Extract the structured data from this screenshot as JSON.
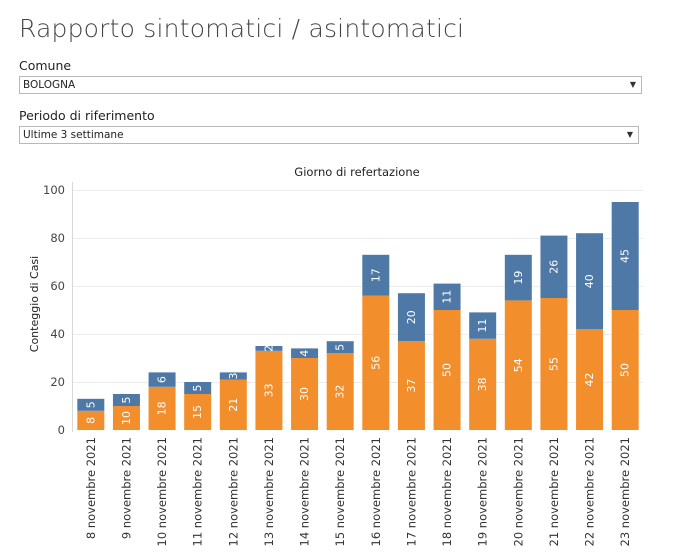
{
  "page": {
    "title": "Rapporto sintomatici / asintomatici",
    "filters": [
      {
        "label": "Comune",
        "value": "BOLOGNA"
      },
      {
        "label": "Periodo di riferimento",
        "value": "Ultime 3 settimane"
      }
    ]
  },
  "colors": {
    "sintomatici": "#F28E2B",
    "asintomatici": "#4E79A7"
  },
  "chart_data": {
    "type": "bar",
    "stacked": true,
    "title": "Giorno di refertazione",
    "xlabel": "",
    "ylabel": "Conteggio di Casi",
    "ylim": [
      0,
      100
    ],
    "yticks": [
      0,
      20,
      40,
      60,
      80,
      100
    ],
    "grid": true,
    "categories": [
      "8 novembre 2021",
      "9 novembre 2021",
      "10 novembre 2021",
      "11 novembre 2021",
      "12 novembre 2021",
      "13 novembre 2021",
      "14 novembre 2021",
      "15 novembre 2021",
      "16 novembre 2021",
      "17 novembre 2021",
      "18 novembre 2021",
      "19 novembre 2021",
      "20 novembre 2021",
      "21 novembre 2021",
      "22 novembre 2021",
      "23 novembre 2021"
    ],
    "series": [
      {
        "values": [
          8,
          10,
          18,
          15,
          21,
          33,
          30,
          32,
          56,
          37,
          50,
          38,
          54,
          55,
          42,
          50
        ],
        "color": "#F28E2B"
      },
      {
        "values": [
          5,
          5,
          6,
          5,
          3,
          2,
          4,
          5,
          17,
          20,
          11,
          11,
          19,
          26,
          40,
          45
        ],
        "color": "#4E79A7"
      }
    ]
  }
}
